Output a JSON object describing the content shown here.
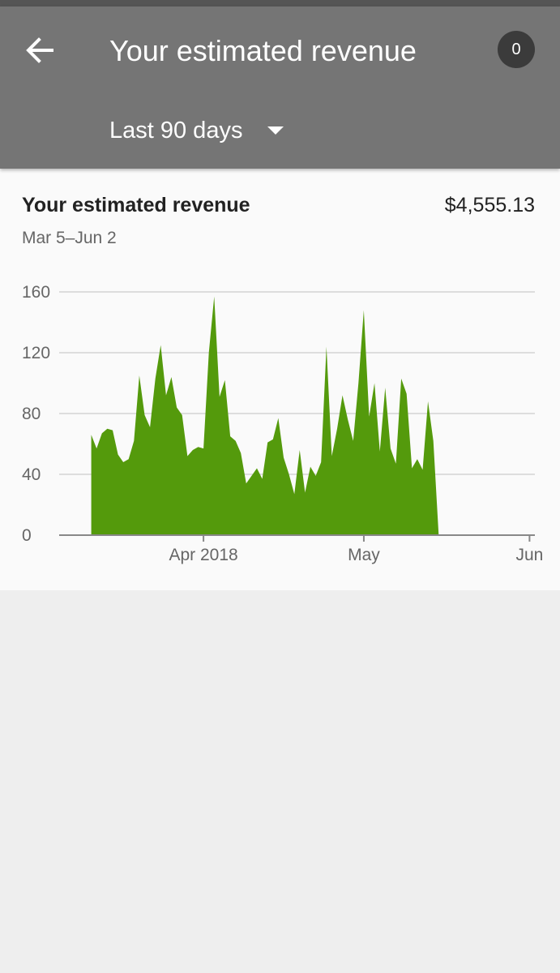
{
  "header": {
    "title": "Your estimated revenue",
    "notification_count": "0",
    "range_label": "Last 90 days",
    "back_icon": "arrow-back-icon",
    "dropdown_icon": "caret-down-icon"
  },
  "card": {
    "title": "Your estimated revenue",
    "total": "$4,555.13",
    "date_range": "Mar 5–Jun 2"
  },
  "colors": {
    "app_bar": "#757575",
    "badge": "#3b3b3b",
    "series_fill": "#549a0c",
    "grid": "#dddddd",
    "axis": "#888888"
  },
  "chart_data": {
    "type": "area",
    "title": "",
    "xlabel": "",
    "ylabel": "",
    "x_start": "2018-03-05",
    "x_end": "2018-06-02",
    "ylim": [
      0,
      160
    ],
    "y_ticks": [
      0,
      40,
      80,
      120,
      160
    ],
    "x_ticks": [
      {
        "date": "2018-04-01",
        "label": "Apr 2018"
      },
      {
        "date": "2018-05-01",
        "label": "May"
      },
      {
        "date": "2018-06-01",
        "label": "Jun"
      }
    ],
    "grid": true,
    "legend": "none",
    "series": [
      {
        "points": [
          [
            "2018-03-11",
            66
          ],
          [
            "2018-03-12",
            57
          ],
          [
            "2018-03-13",
            67
          ],
          [
            "2018-03-14",
            70
          ],
          [
            "2018-03-15",
            69
          ],
          [
            "2018-03-16",
            53
          ],
          [
            "2018-03-17",
            48
          ],
          [
            "2018-03-18",
            50
          ],
          [
            "2018-03-19",
            62
          ],
          [
            "2018-03-20",
            105
          ],
          [
            "2018-03-21",
            79
          ],
          [
            "2018-03-22",
            71
          ],
          [
            "2018-03-23",
            103
          ],
          [
            "2018-03-24",
            125
          ],
          [
            "2018-03-25",
            92
          ],
          [
            "2018-03-26",
            104
          ],
          [
            "2018-03-27",
            84
          ],
          [
            "2018-03-28",
            79
          ],
          [
            "2018-03-29",
            52
          ],
          [
            "2018-03-30",
            56
          ],
          [
            "2018-03-31",
            58
          ],
          [
            "2018-04-01",
            57
          ],
          [
            "2018-04-02",
            120
          ],
          [
            "2018-04-03",
            157
          ],
          [
            "2018-04-04",
            91
          ],
          [
            "2018-04-05",
            102
          ],
          [
            "2018-04-06",
            65
          ],
          [
            "2018-04-07",
            62
          ],
          [
            "2018-04-08",
            54
          ],
          [
            "2018-04-09",
            34
          ],
          [
            "2018-04-10",
            39
          ],
          [
            "2018-04-11",
            44
          ],
          [
            "2018-04-12",
            37
          ],
          [
            "2018-04-13",
            61
          ],
          [
            "2018-04-14",
            63
          ],
          [
            "2018-04-15",
            77
          ],
          [
            "2018-04-16",
            51
          ],
          [
            "2018-04-17",
            40
          ],
          [
            "2018-04-18",
            27
          ],
          [
            "2018-04-19",
            56
          ],
          [
            "2018-04-20",
            28
          ],
          [
            "2018-04-21",
            45
          ],
          [
            "2018-04-22",
            39
          ],
          [
            "2018-04-23",
            48
          ],
          [
            "2018-04-24",
            124
          ],
          [
            "2018-04-25",
            52
          ],
          [
            "2018-04-26",
            70
          ],
          [
            "2018-04-27",
            92
          ],
          [
            "2018-04-28",
            76
          ],
          [
            "2018-04-29",
            62
          ],
          [
            "2018-04-30",
            100
          ],
          [
            "2018-05-01",
            148
          ],
          [
            "2018-05-02",
            78
          ],
          [
            "2018-05-03",
            100
          ],
          [
            "2018-05-04",
            55
          ],
          [
            "2018-05-05",
            97
          ],
          [
            "2018-05-06",
            57
          ],
          [
            "2018-05-07",
            47
          ],
          [
            "2018-05-08",
            103
          ],
          [
            "2018-05-09",
            93
          ],
          [
            "2018-05-10",
            44
          ],
          [
            "2018-05-11",
            50
          ],
          [
            "2018-05-12",
            43
          ],
          [
            "2018-05-13",
            88
          ],
          [
            "2018-05-14",
            62
          ],
          [
            "2018-05-15",
            0
          ]
        ]
      }
    ]
  }
}
